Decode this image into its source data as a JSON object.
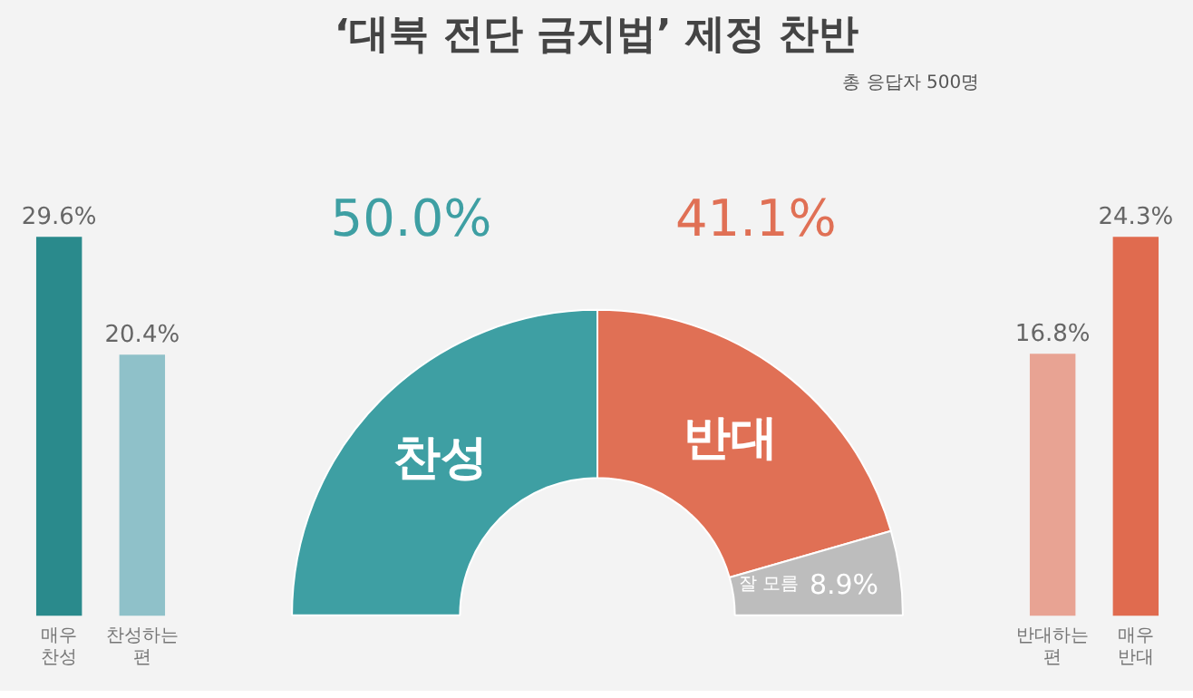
{
  "chart_data": [
    {
      "type": "bar",
      "categories": [
        "매우 찬성",
        "찬성하는 편"
      ],
      "values": [
        29.6,
        20.4
      ],
      "colors": [
        "#2a8a8c",
        "#8fc1c9"
      ],
      "value_labels": [
        "29.6%",
        "20.4%"
      ]
    },
    {
      "type": "donut",
      "title": "‘대북 전단 금지법’ 제정 찬반",
      "subtitle": "총 응답자 500명",
      "categories": [
        "찬성",
        "반대",
        "잘 모름"
      ],
      "values": [
        50.0,
        41.1,
        8.9
      ],
      "colors": [
        "#3e9fa3",
        "#e07055",
        "#bdbdbd"
      ],
      "value_labels": [
        "50.0%",
        "41.1%",
        "8.9%"
      ]
    },
    {
      "type": "bar",
      "categories": [
        "반대하는 편",
        "매우 반대"
      ],
      "values": [
        16.8,
        24.3
      ],
      "colors": [
        "#e8a393",
        "#e06b4f"
      ],
      "value_labels": [
        "16.8%",
        "24.3%"
      ]
    }
  ]
}
